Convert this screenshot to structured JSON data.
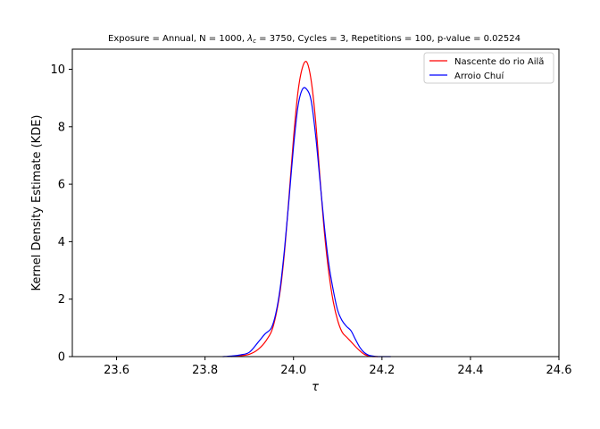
{
  "chart_data": {
    "type": "line",
    "title": "Exposure = Annual, N = 1000, λc = 3750, Cycles = 3, Repetitions = 100, p-value = 0.02524",
    "title_parts": {
      "prefix": "Exposure = Annual, N = 1000, ",
      "lambda": "λ",
      "subscript": "c",
      "suffix": " = 3750, Cycles = 3, Repetitions = 100, p-value = 0.02524"
    },
    "xlabel": "τ",
    "ylabel": "Kernel Density Estimate (KDE)",
    "xlim": [
      23.5,
      24.6
    ],
    "ylim": [
      0,
      10.7
    ],
    "xticks": [
      23.6,
      23.8,
      24.0,
      24.2,
      24.4,
      24.6
    ],
    "xtick_labels": [
      "23.6",
      "23.8",
      "24.0",
      "24.2",
      "24.4",
      "24.6"
    ],
    "yticks": [
      0,
      2,
      4,
      6,
      8,
      10
    ],
    "ytick_labels": [
      "0",
      "2",
      "4",
      "6",
      "8",
      "10"
    ],
    "grid": false,
    "legend_position": "top-right",
    "series": [
      {
        "name": "Nascente do rio Ailã",
        "color": "#ff0000",
        "x": [
          23.86,
          23.88,
          23.9,
          23.92,
          23.94,
          23.955,
          23.97,
          23.98,
          23.99,
          24.0,
          24.01,
          24.02,
          24.03,
          24.04,
          24.05,
          24.06,
          24.07,
          24.08,
          24.09,
          24.1,
          24.11,
          24.12,
          24.13,
          24.14,
          24.15,
          24.16,
          24.17,
          24.18,
          24.19
        ],
        "y": [
          0.0,
          0.03,
          0.08,
          0.25,
          0.6,
          1.1,
          2.3,
          3.7,
          5.6,
          7.6,
          9.2,
          10.05,
          10.25,
          9.6,
          8.2,
          6.2,
          4.3,
          2.9,
          1.9,
          1.25,
          0.85,
          0.68,
          0.52,
          0.35,
          0.2,
          0.08,
          0.02,
          0.0,
          0.0
        ]
      },
      {
        "name": "Arroio Chuí",
        "color": "#0000ff",
        "x": [
          23.84,
          23.86,
          23.88,
          23.9,
          23.92,
          23.935,
          23.95,
          23.96,
          23.97,
          23.98,
          23.99,
          24.0,
          24.01,
          24.02,
          24.03,
          24.04,
          24.05,
          24.06,
          24.07,
          24.08,
          24.09,
          24.1,
          24.11,
          24.12,
          24.13,
          24.14,
          24.15,
          24.16,
          24.17,
          24.18,
          24.19,
          24.2,
          24.22
        ],
        "y": [
          0.0,
          0.02,
          0.06,
          0.15,
          0.5,
          0.78,
          1.0,
          1.5,
          2.4,
          3.8,
          5.5,
          7.3,
          8.7,
          9.3,
          9.3,
          8.9,
          7.7,
          6.1,
          4.5,
          3.2,
          2.3,
          1.6,
          1.25,
          1.05,
          0.9,
          0.6,
          0.32,
          0.14,
          0.05,
          0.02,
          0.0,
          0.0,
          0.0
        ]
      }
    ]
  }
}
